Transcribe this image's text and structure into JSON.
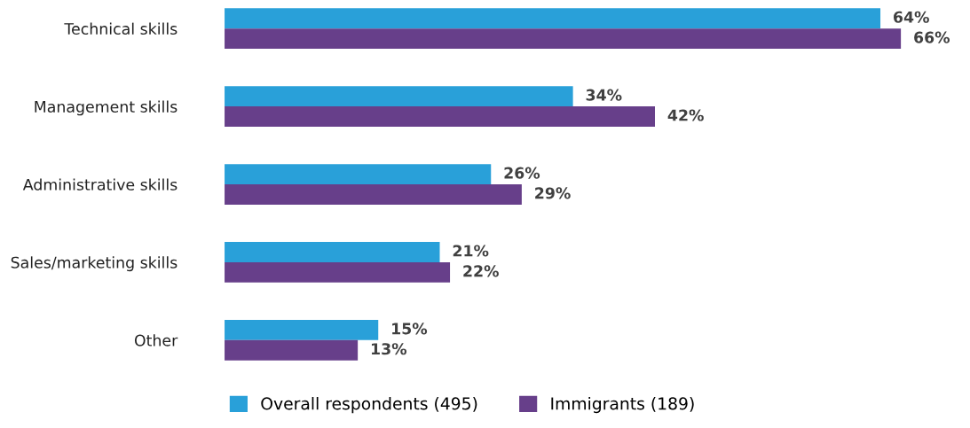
{
  "chart_data": {
    "type": "bar",
    "orientation": "horizontal",
    "categories": [
      "Technical skills",
      "Management skills",
      "Administrative skills",
      "Sales/marketing skills",
      "Other"
    ],
    "series": [
      {
        "name": "Overall respondents (495)",
        "color": "#29a0d9",
        "values": [
          64,
          34,
          26,
          21,
          15
        ],
        "value_labels": [
          "64%",
          "34%",
          "26%",
          "21%",
          "15%"
        ]
      },
      {
        "name": "Immigrants (189)",
        "color": "#673f8a",
        "values": [
          66,
          42,
          29,
          22,
          13
        ],
        "value_labels": [
          "66%",
          "42%",
          "29%",
          "22%",
          "13%"
        ]
      }
    ],
    "tick_labels": "y",
    "grid": false,
    "legend": "bottom"
  }
}
